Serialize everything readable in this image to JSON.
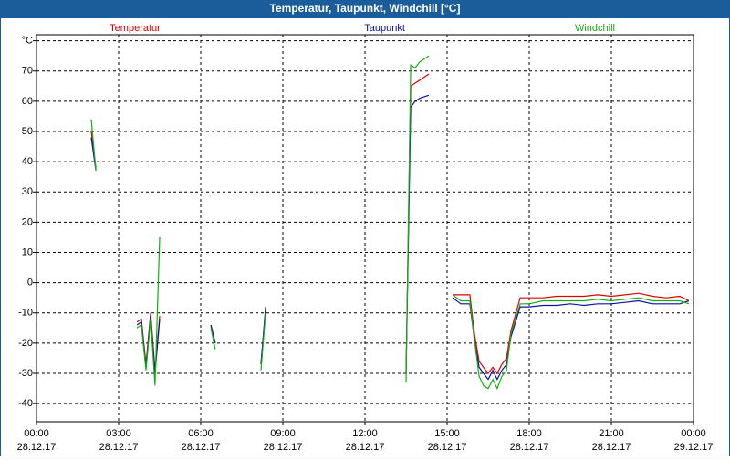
{
  "chart_data": {
    "type": "line",
    "title": "Temperatur, Taupunkt, Windchill [°C]",
    "x": [
      2.0,
      2.17,
      3.0,
      3.67,
      3.83,
      4.0,
      4.17,
      4.33,
      4.5,
      5.5,
      6.37,
      6.53,
      7.5,
      8.2,
      8.37,
      11.0,
      13.5,
      13.67,
      13.83,
      14.0,
      14.33,
      15.0,
      15.2,
      15.5,
      15.83,
      16.0,
      16.17,
      16.33,
      16.5,
      16.67,
      16.83,
      17.0,
      17.17,
      17.33,
      17.67,
      18.0,
      18.5,
      19.0,
      19.5,
      20.0,
      20.5,
      21.0,
      21.5,
      22.0,
      22.5,
      23.0,
      23.5,
      23.83
    ],
    "series": [
      {
        "name": "Temperatur",
        "color": "#e00000",
        "values": [
          50,
          38,
          null,
          -13,
          -12,
          -27,
          -10,
          -29,
          -11,
          null,
          -14,
          -20,
          null,
          -27,
          -9,
          null,
          -30,
          65,
          66,
          67,
          69,
          null,
          -4,
          -4,
          -4,
          -17,
          -26,
          -28,
          -30,
          -28,
          -30,
          -27,
          -25,
          -16,
          -5,
          -5,
          -5,
          -4.5,
          -4.5,
          -4.5,
          -4,
          -4.5,
          -4,
          -3.5,
          -4.5,
          -5,
          -4.5,
          -6
        ]
      },
      {
        "name": "Taupunkt",
        "color": "#1010a0",
        "values": [
          48,
          37,
          null,
          -14,
          -13,
          -28,
          -11,
          -30,
          -12,
          null,
          -14,
          -20,
          null,
          -27,
          -8,
          null,
          -30,
          58,
          60,
          61,
          62,
          null,
          -5,
          -7,
          -7,
          -19,
          -28,
          -30,
          -32,
          -29,
          -32,
          -29,
          -27,
          -18,
          -8,
          -8,
          -7.5,
          -7.5,
          -7,
          -7.5,
          -7,
          -7,
          -6.5,
          -6,
          -7,
          -7,
          -7,
          -6
        ]
      },
      {
        "name": "Windchill",
        "color": "#10b010",
        "values": [
          54,
          37,
          null,
          -15,
          -14,
          -29,
          -12,
          -34,
          15,
          null,
          -15,
          -22,
          null,
          -29,
          -10,
          null,
          -33,
          72,
          71,
          73,
          75,
          null,
          -4,
          -6,
          -6,
          -19,
          -31,
          -34,
          -35,
          -32,
          -35,
          -31,
          -29,
          -17,
          -7,
          -7,
          -6,
          -6,
          -6,
          -6,
          -5.5,
          -6,
          -5.5,
          -5,
          -6,
          -6,
          -6,
          -7
        ]
      }
    ],
    "xlim": [
      0,
      24
    ],
    "ylim": [
      -46,
      82
    ],
    "xticks": [
      {
        "value": 0,
        "label": "00:00",
        "date": "28.12.17"
      },
      {
        "value": 3,
        "label": "03:00",
        "date": "28.12.17"
      },
      {
        "value": 6,
        "label": "06:00",
        "date": "28.12.17"
      },
      {
        "value": 9,
        "label": "09:00",
        "date": "28.12.17"
      },
      {
        "value": 12,
        "label": "12:00",
        "date": "28.12.17"
      },
      {
        "value": 15,
        "label": "15:00",
        "date": "28.12.17"
      },
      {
        "value": 18,
        "label": "18:00",
        "date": "28.12.17"
      },
      {
        "value": 21,
        "label": "21:00",
        "date": "28.12.17"
      },
      {
        "value": 24,
        "label": "00:00",
        "date": "29.12.17"
      }
    ],
    "yticks": [
      {
        "value": 80,
        "label": "°C"
      },
      70,
      60,
      50,
      40,
      30,
      20,
      10,
      0,
      -10,
      -20,
      -30,
      -40
    ],
    "grid": true
  }
}
